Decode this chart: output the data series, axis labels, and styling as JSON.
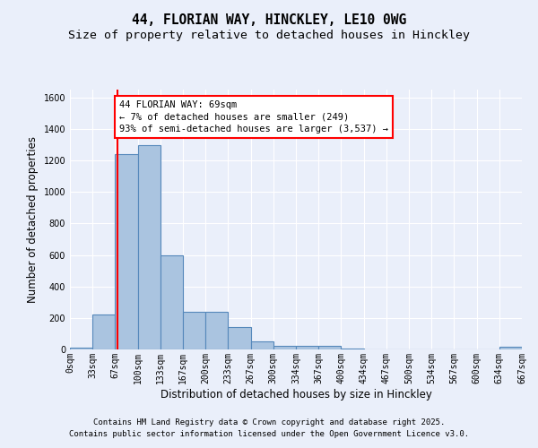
{
  "title_line1": "44, FLORIAN WAY, HINCKLEY, LE10 0WG",
  "title_line2": "Size of property relative to detached houses in Hinckley",
  "xlabel": "Distribution of detached houses by size in Hinckley",
  "ylabel": "Number of detached properties",
  "bin_labels": [
    "0sqm",
    "33sqm",
    "67sqm",
    "100sqm",
    "133sqm",
    "167sqm",
    "200sqm",
    "233sqm",
    "267sqm",
    "300sqm",
    "334sqm",
    "367sqm",
    "400sqm",
    "434sqm",
    "467sqm",
    "500sqm",
    "534sqm",
    "567sqm",
    "600sqm",
    "634sqm",
    "667sqm"
  ],
  "bar_values": [
    10,
    220,
    1240,
    1300,
    600,
    240,
    240,
    140,
    50,
    25,
    20,
    20,
    5,
    0,
    0,
    0,
    0,
    0,
    0,
    15,
    0
  ],
  "bar_color": "#aac4e0",
  "bar_edge_color": "#5588bb",
  "bin_width": 33,
  "red_line_x": 69,
  "annotation_text": "44 FLORIAN WAY: 69sqm\n← 7% of detached houses are smaller (249)\n93% of semi-detached houses are larger (3,537) →",
  "annotation_box_color": "white",
  "annotation_box_edge_color": "red",
  "vline_color": "red",
  "ylim": [
    0,
    1650
  ],
  "yticks": [
    0,
    200,
    400,
    600,
    800,
    1000,
    1200,
    1400,
    1600
  ],
  "background_color": "#eaeffa",
  "grid_color": "white",
  "footnote1": "Contains HM Land Registry data © Crown copyright and database right 2025.",
  "footnote2": "Contains public sector information licensed under the Open Government Licence v3.0.",
  "title_fontsize": 10.5,
  "subtitle_fontsize": 9.5,
  "axis_label_fontsize": 8.5,
  "tick_fontsize": 7,
  "annotation_fontsize": 7.5,
  "footnote_fontsize": 6.5
}
